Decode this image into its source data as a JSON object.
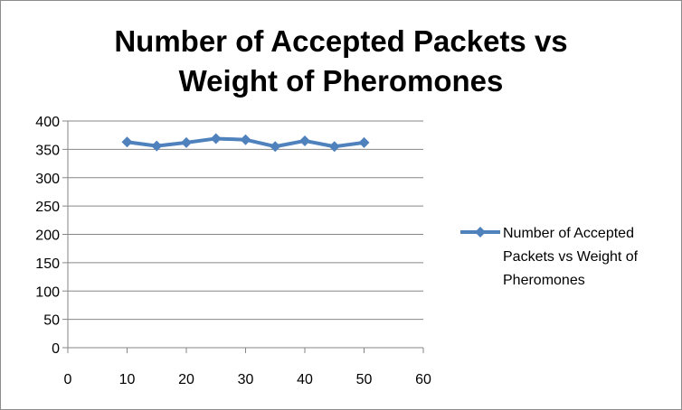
{
  "chart_data": {
    "type": "line",
    "title_lines": [
      "Number of Accepted Packets vs",
      "Weight of Pheromones"
    ],
    "xlabel": "",
    "ylabel": "",
    "xlim": [
      0,
      60
    ],
    "ylim": [
      0,
      400
    ],
    "x_ticks": [
      0,
      10,
      20,
      30,
      40,
      50,
      60
    ],
    "y_ticks": [
      0,
      50,
      100,
      150,
      200,
      250,
      300,
      350,
      400
    ],
    "grid": "horizontal",
    "legend_position": "right",
    "legend_lines": [
      "Number of Accepted",
      "Packets vs Weight of",
      "Pheromones"
    ],
    "series": [
      {
        "color": "#4f81bd",
        "marker": "diamond",
        "x": [
          10,
          15,
          20,
          25,
          30,
          35,
          40,
          45,
          50
        ],
        "y": [
          363,
          356,
          362,
          369,
          367,
          355,
          365,
          355,
          362
        ]
      }
    ]
  }
}
